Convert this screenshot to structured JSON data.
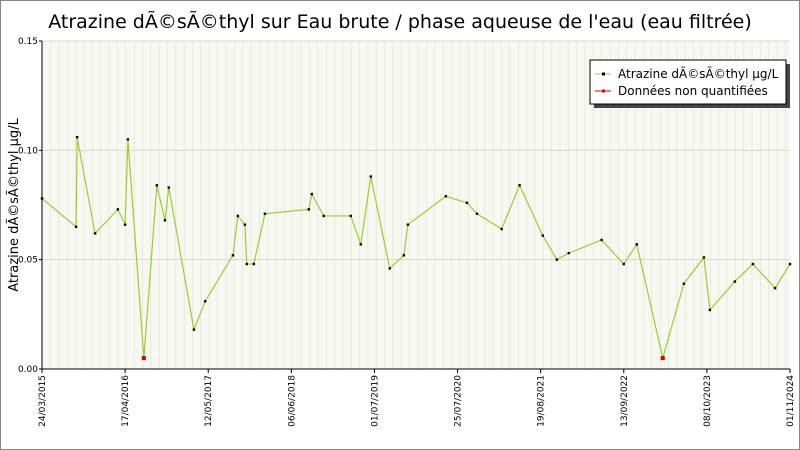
{
  "chart_data": {
    "type": "line",
    "title": "Atrazine dÃ©sÃ©thyl sur Eau brute / phase aqueuse de l'eau (eau filtrée)",
    "y_label": "Atrazine dÃ©sÃ©thyl µg/L",
    "x": [
      "2015-03-24",
      "2015-08-31",
      "2015-09-05",
      "2015-11-28",
      "2016-03-14",
      "2016-04-17",
      "2016-04-30",
      "2016-07-14",
      "2016-09-13",
      "2016-10-21",
      "2016-11-08",
      "2017-03-06",
      "2017-04-28",
      "2017-09-05",
      "2017-09-28",
      "2017-10-31",
      "2017-11-09",
      "2017-12-12",
      "2018-02-02",
      "2018-08-27",
      "2018-09-10",
      "2018-11-05",
      "2019-03-12",
      "2019-04-28",
      "2019-06-14",
      "2019-09-11",
      "2019-11-16",
      "2019-12-05",
      "2020-05-31",
      "2020-09-07",
      "2020-10-24",
      "2021-02-17",
      "2021-05-12",
      "2021-08-29",
      "2021-11-03",
      "2021-12-29",
      "2022-06-01",
      "2022-09-13",
      "2022-11-13",
      "2023-03-15",
      "2023-06-22",
      "2023-09-24",
      "2023-10-22",
      "2024-02-16",
      "2024-05-11",
      "2024-08-23",
      "2024-11-01"
    ],
    "series": [
      {
        "name": "Atrazine dÃ©sÃ©thyl µg/L",
        "color": "#9acd32",
        "marker_color": "#000000",
        "values": [
          0.078,
          0.065,
          0.106,
          0.062,
          0.073,
          0.066,
          0.105,
          0.005,
          0.084,
          0.068,
          0.083,
          0.018,
          0.031,
          0.052,
          0.07,
          0.066,
          0.048,
          0.048,
          0.071,
          0.073,
          0.08,
          0.07,
          0.07,
          0.057,
          0.088,
          0.046,
          0.052,
          0.066,
          0.079,
          0.076,
          0.071,
          0.064,
          0.084,
          0.061,
          0.05,
          0.053,
          0.059,
          0.048,
          0.057,
          0.005,
          0.039,
          0.051,
          0.027,
          0.04,
          0.048,
          0.037,
          0.048
        ]
      },
      {
        "name": "Données non quantifiées",
        "color": "#e00000",
        "values": [
          null,
          null,
          null,
          null,
          null,
          null,
          null,
          0.005,
          null,
          null,
          null,
          null,
          null,
          null,
          null,
          null,
          null,
          null,
          null,
          null,
          null,
          null,
          null,
          null,
          null,
          null,
          null,
          null,
          null,
          null,
          null,
          null,
          null,
          null,
          null,
          null,
          null,
          null,
          null,
          0.005,
          null,
          null,
          null,
          null,
          null,
          null,
          null
        ]
      }
    ],
    "xlim": [
      "2015-03-24",
      "2024-11-01"
    ],
    "xticks": [
      {
        "value": "2015-03-24",
        "label": "24/03/2015"
      },
      {
        "value": "2016-04-17",
        "label": "17/04/2016"
      },
      {
        "value": "2017-05-12",
        "label": "12/05/2017"
      },
      {
        "value": "2018-06-06",
        "label": "06/06/2018"
      },
      {
        "value": "2019-07-01",
        "label": "01/07/2019"
      },
      {
        "value": "2020-07-25",
        "label": "25/07/2020"
      },
      {
        "value": "2021-08-19",
        "label": "19/08/2021"
      },
      {
        "value": "2022-09-13",
        "label": "13/09/2022"
      },
      {
        "value": "2023-10-08",
        "label": "08/10/2023"
      },
      {
        "value": "2024-11-01",
        "label": "01/11/2024"
      }
    ],
    "ylim": [
      0,
      0.15
    ],
    "yticks": [
      {
        "value": 0,
        "label": "0.00"
      },
      0.05,
      {
        "value": 0.1,
        "label": "0.10"
      },
      0.15
    ],
    "grid": true,
    "legend": "upper right"
  }
}
